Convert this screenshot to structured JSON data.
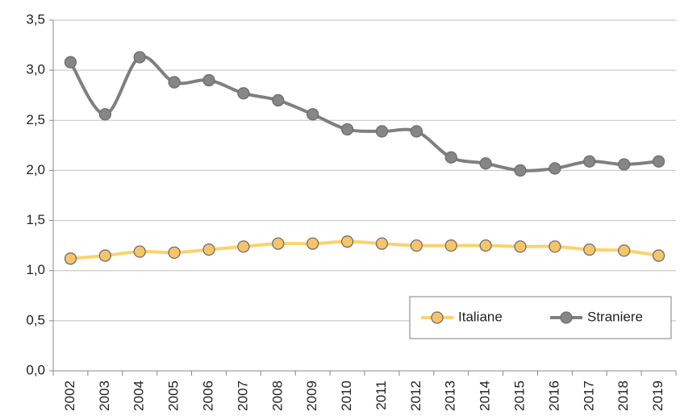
{
  "chart_data": {
    "type": "line",
    "categories": [
      "2002",
      "2003",
      "2004",
      "2005",
      "2006",
      "2007",
      "2008",
      "2009",
      "2010",
      "2011",
      "2012",
      "2013",
      "2014",
      "2015",
      "2016",
      "2017",
      "2018",
      "2019"
    ],
    "series": [
      {
        "name": "Italiane",
        "color": "#fbd26e",
        "marker_color": "#f6c56a",
        "values": [
          1.12,
          1.15,
          1.19,
          1.18,
          1.21,
          1.24,
          1.27,
          1.27,
          1.29,
          1.27,
          1.25,
          1.25,
          1.25,
          1.24,
          1.24,
          1.21,
          1.2,
          1.15
        ]
      },
      {
        "name": "Straniere",
        "color": "#7f7f7f",
        "marker_color": "#868686",
        "values": [
          3.08,
          2.56,
          3.13,
          2.88,
          2.9,
          2.77,
          2.7,
          2.56,
          2.41,
          2.39,
          2.39,
          2.13,
          2.07,
          2.0,
          2.02,
          2.09,
          2.06,
          2.09
        ]
      }
    ],
    "ylim": [
      0,
      3.5
    ],
    "yticks": [
      {
        "value": 0,
        "label": "0,0"
      },
      {
        "value": 0.5,
        "label": "0,5"
      },
      {
        "value": 1,
        "label": "1,0"
      },
      {
        "value": 1.5,
        "label": "1,5"
      },
      {
        "value": 2,
        "label": "2,0"
      },
      {
        "value": 2.5,
        "label": "2,5"
      },
      {
        "value": 3,
        "label": "3,0"
      },
      {
        "value": 3.5,
        "label": "3,5"
      }
    ],
    "grid": true,
    "smooth": true,
    "legend": "lower right"
  }
}
